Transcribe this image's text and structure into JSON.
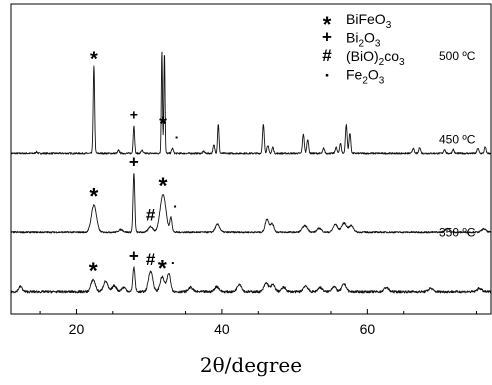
{
  "chart_data": {
    "type": "line",
    "xlabel": "2θ/degree",
    "ylabel": "",
    "xlim": [
      11,
      77
    ],
    "x_ticks": [
      20,
      40,
      60
    ],
    "y_ticks_shown": false,
    "grid": false,
    "legend_position": "top-right",
    "legend": [
      {
        "symbol": "*",
        "formula": [
          "BiFeO",
          "3",
          ""
        ]
      },
      {
        "symbol": "+",
        "formula": [
          "Bi",
          "2",
          "O",
          "3",
          ""
        ]
      },
      {
        "symbol": "#",
        "formula": [
          "(BiO)",
          "2",
          "co",
          "3",
          ""
        ]
      },
      {
        "symbol": "▪",
        "formula": [
          "Fe",
          "2",
          "O",
          "3",
          ""
        ]
      }
    ],
    "series": [
      {
        "name": "500 ºC",
        "label_anchor": 0.82,
        "baseline": 0.04,
        "noise": 0.008,
        "peaks": [
          {
            "x": 14.5,
            "h": 0.015,
            "w": 0.12
          },
          {
            "x": 22.4,
            "h": 0.85,
            "w": 0.1
          },
          {
            "x": 25.8,
            "h": 0.03,
            "w": 0.12
          },
          {
            "x": 27.9,
            "h": 0.27,
            "w": 0.1
          },
          {
            "x": 29.0,
            "h": 0.03,
            "w": 0.12
          },
          {
            "x": 31.75,
            "h": 1.0,
            "w": 0.08
          },
          {
            "x": 32.1,
            "h": 0.99,
            "w": 0.08
          },
          {
            "x": 33.2,
            "h": 0.05,
            "w": 0.12
          },
          {
            "x": 37.5,
            "h": 0.02,
            "w": 0.12
          },
          {
            "x": 38.9,
            "h": 0.08,
            "w": 0.12
          },
          {
            "x": 39.5,
            "h": 0.29,
            "w": 0.1
          },
          {
            "x": 45.7,
            "h": 0.28,
            "w": 0.12
          },
          {
            "x": 46.3,
            "h": 0.08,
            "w": 0.12
          },
          {
            "x": 47.0,
            "h": 0.06,
            "w": 0.12
          },
          {
            "x": 51.2,
            "h": 0.19,
            "w": 0.12
          },
          {
            "x": 51.8,
            "h": 0.14,
            "w": 0.12
          },
          {
            "x": 54.0,
            "h": 0.05,
            "w": 0.12
          },
          {
            "x": 55.7,
            "h": 0.06,
            "w": 0.12
          },
          {
            "x": 56.3,
            "h": 0.1,
            "w": 0.12
          },
          {
            "x": 57.1,
            "h": 0.28,
            "w": 0.12
          },
          {
            "x": 57.6,
            "h": 0.2,
            "w": 0.12
          },
          {
            "x": 66.3,
            "h": 0.05,
            "w": 0.12
          },
          {
            "x": 67.2,
            "h": 0.06,
            "w": 0.12
          },
          {
            "x": 70.6,
            "h": 0.04,
            "w": 0.12
          },
          {
            "x": 71.8,
            "h": 0.04,
            "w": 0.12
          },
          {
            "x": 75.2,
            "h": 0.05,
            "w": 0.12
          },
          {
            "x": 76.2,
            "h": 0.06,
            "w": 0.12
          }
        ],
        "annotations": [
          {
            "symbol": "*",
            "x": 22.4
          },
          {
            "symbol": "+",
            "x": 27.9
          },
          {
            "symbol": "*",
            "x": 31.9
          },
          {
            "symbol": "▪",
            "x": 33.2
          }
        ]
      },
      {
        "name": "450 ºC",
        "label_anchor": 0.55,
        "baseline": 0.09,
        "noise": 0.012,
        "peaks": [
          {
            "x": 22.4,
            "h": 0.42,
            "w": 0.35
          },
          {
            "x": 26.1,
            "h": 0.04,
            "w": 0.3
          },
          {
            "x": 27.9,
            "h": 0.9,
            "w": 0.12
          },
          {
            "x": 30.2,
            "h": 0.09,
            "w": 0.3
          },
          {
            "x": 31.9,
            "h": 0.58,
            "w": 0.4
          },
          {
            "x": 33.0,
            "h": 0.22,
            "w": 0.15
          },
          {
            "x": 39.4,
            "h": 0.12,
            "w": 0.3
          },
          {
            "x": 46.2,
            "h": 0.2,
            "w": 0.25
          },
          {
            "x": 46.9,
            "h": 0.13,
            "w": 0.25
          },
          {
            "x": 51.4,
            "h": 0.1,
            "w": 0.35
          },
          {
            "x": 53.4,
            "h": 0.06,
            "w": 0.3
          },
          {
            "x": 55.6,
            "h": 0.12,
            "w": 0.3
          },
          {
            "x": 56.8,
            "h": 0.14,
            "w": 0.35
          },
          {
            "x": 57.8,
            "h": 0.1,
            "w": 0.3
          },
          {
            "x": 71.0,
            "h": 0.06,
            "w": 0.3
          },
          {
            "x": 76.0,
            "h": 0.05,
            "w": 0.3
          }
        ],
        "annotations": [
          {
            "symbol": "*",
            "x": 22.4
          },
          {
            "symbol": "+",
            "x": 27.9
          },
          {
            "symbol": "#",
            "x": 30.2
          },
          {
            "symbol": "*",
            "x": 31.9
          },
          {
            "symbol": "▪",
            "x": 33.0
          }
        ]
      },
      {
        "name": "350 ºC",
        "label_anchor": 0.25,
        "baseline": 0.06,
        "noise": 0.014,
        "peaks": [
          {
            "x": 12.3,
            "h": 0.06,
            "w": 0.25
          },
          {
            "x": 22.3,
            "h": 0.14,
            "w": 0.3
          },
          {
            "x": 24.0,
            "h": 0.12,
            "w": 0.3
          },
          {
            "x": 25.2,
            "h": 0.07,
            "w": 0.3
          },
          {
            "x": 26.5,
            "h": 0.05,
            "w": 0.3
          },
          {
            "x": 27.9,
            "h": 0.28,
            "w": 0.15
          },
          {
            "x": 30.2,
            "h": 0.24,
            "w": 0.3
          },
          {
            "x": 31.8,
            "h": 0.17,
            "w": 0.3
          },
          {
            "x": 32.7,
            "h": 0.21,
            "w": 0.25
          },
          {
            "x": 35.7,
            "h": 0.05,
            "w": 0.3
          },
          {
            "x": 39.3,
            "h": 0.06,
            "w": 0.3
          },
          {
            "x": 42.4,
            "h": 0.09,
            "w": 0.3
          },
          {
            "x": 46.1,
            "h": 0.1,
            "w": 0.3
          },
          {
            "x": 47.0,
            "h": 0.08,
            "w": 0.3
          },
          {
            "x": 48.5,
            "h": 0.05,
            "w": 0.3
          },
          {
            "x": 51.5,
            "h": 0.07,
            "w": 0.3
          },
          {
            "x": 53.5,
            "h": 0.05,
            "w": 0.3
          },
          {
            "x": 55.4,
            "h": 0.06,
            "w": 0.3
          },
          {
            "x": 56.8,
            "h": 0.09,
            "w": 0.3
          },
          {
            "x": 62.6,
            "h": 0.05,
            "w": 0.3
          },
          {
            "x": 68.7,
            "h": 0.04,
            "w": 0.3
          },
          {
            "x": 75.4,
            "h": 0.04,
            "w": 0.3
          }
        ],
        "annotations": [
          {
            "symbol": "*",
            "x": 22.3
          },
          {
            "symbol": "+",
            "x": 27.9
          },
          {
            "symbol": "#",
            "x": 30.2
          },
          {
            "symbol": "*",
            "x": 31.8
          },
          {
            "symbol": "▪",
            "x": 32.7
          }
        ]
      }
    ]
  }
}
